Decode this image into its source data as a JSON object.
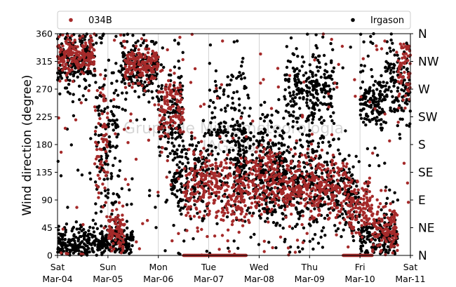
{
  "chart_data": {
    "type": "scatter",
    "title": "",
    "ylabel": "Wind direction (degree)",
    "xlabel": "",
    "ylim": [
      0,
      360
    ],
    "yticks": [
      0,
      45,
      90,
      135,
      180,
      225,
      270,
      315,
      360
    ],
    "xrange": [
      "2023-03-04",
      "2023-03-11"
    ],
    "x_ticks": [
      {
        "day": "Sat",
        "date": "Mar-04"
      },
      {
        "day": "Sun",
        "date": "Mar-05"
      },
      {
        "day": "Mon",
        "date": "Mar-06"
      },
      {
        "day": "Tue",
        "date": "Mar-07"
      },
      {
        "day": "Wed",
        "date": "Mar-08"
      },
      {
        "day": "Thu",
        "date": "Mar-09"
      },
      {
        "day": "Fri",
        "date": "Mar-10"
      },
      {
        "day": "Sat",
        "date": "Mar-11"
      }
    ],
    "compass_labels": [
      "N",
      "NE",
      "E",
      "SE",
      "S",
      "SW",
      "W",
      "NW",
      "N"
    ],
    "vertical_gridlines": true,
    "legend_placement": "top, above plot",
    "watermark_lines": [
      "Grupo de Micrometeorologia",
      "IAG-USP"
    ],
    "series": [
      {
        "name": "034B",
        "color": "#a52a2a",
        "segments": [
          {
            "start": "2023-03-04T00:00",
            "end": "2023-03-04T18:00",
            "center": 325,
            "spread": 28
          },
          {
            "start": "2023-03-04T18:00",
            "end": "2023-03-05T00:00",
            "center": 170,
            "spread": 90
          },
          {
            "start": "2023-03-05T00:00",
            "end": "2023-03-05T08:00",
            "center": 40,
            "spread": 35
          },
          {
            "start": "2023-03-05T08:00",
            "end": "2023-03-06T00:00",
            "center": 310,
            "spread": 30
          },
          {
            "start": "2023-03-06T00:00",
            "end": "2023-03-06T12:00",
            "center": 240,
            "spread": 50
          },
          {
            "start": "2023-03-06T12:00",
            "end": "2023-03-07T06:00",
            "center": 110,
            "spread": 55
          },
          {
            "start": "2023-03-07T06:00",
            "end": "2023-03-07T18:00",
            "center": 100,
            "spread": 60
          },
          {
            "start": "2023-03-07T18:00",
            "end": "2023-03-08T12:00",
            "center": 120,
            "spread": 50
          },
          {
            "start": "2023-03-08T12:00",
            "end": "2023-03-09T18:00",
            "center": 110,
            "spread": 45
          },
          {
            "start": "2023-03-09T18:00",
            "end": "2023-03-10T06:00",
            "center": 80,
            "spread": 40
          },
          {
            "start": "2023-03-10T06:00",
            "end": "2023-03-10T18:00",
            "center": 40,
            "spread": 35
          },
          {
            "start": "2023-03-10T18:00",
            "end": "2023-03-11T00:00",
            "center": 300,
            "spread": 45
          }
        ],
        "zero_runs": [
          {
            "start": "2023-03-06T12:00",
            "end": "2023-03-07T18:00"
          },
          {
            "start": "2023-03-09T16:00",
            "end": "2023-03-10T06:00"
          }
        ]
      },
      {
        "name": "Irgason",
        "color": "#000000",
        "segments": [
          {
            "start": "2023-03-04T00:00",
            "end": "2023-03-04T18:00",
            "center": 320,
            "spread": 40
          },
          {
            "start": "2023-03-04T00:00",
            "end": "2023-03-05T00:00",
            "center": 20,
            "spread": 25
          },
          {
            "start": "2023-03-04T18:00",
            "end": "2023-03-05T06:00",
            "center": 180,
            "spread": 120
          },
          {
            "start": "2023-03-05T00:00",
            "end": "2023-03-05T12:00",
            "center": 20,
            "spread": 20
          },
          {
            "start": "2023-03-05T06:00",
            "end": "2023-03-06T00:00",
            "center": 300,
            "spread": 45
          },
          {
            "start": "2023-03-06T00:00",
            "end": "2023-03-06T12:00",
            "center": 230,
            "spread": 80
          },
          {
            "start": "2023-03-06T06:00",
            "end": "2023-03-07T00:00",
            "center": 130,
            "spread": 70
          },
          {
            "start": "2023-03-07T00:00",
            "end": "2023-03-07T18:00",
            "center": 200,
            "spread": 110
          },
          {
            "start": "2023-03-07T12:00",
            "end": "2023-03-08T12:00",
            "center": 140,
            "spread": 80
          },
          {
            "start": "2023-03-08T00:00",
            "end": "2023-03-09T12:00",
            "center": 120,
            "spread": 70
          },
          {
            "start": "2023-03-08T12:00",
            "end": "2023-03-09T12:00",
            "center": 270,
            "spread": 60
          },
          {
            "start": "2023-03-09T12:00",
            "end": "2023-03-10T00:00",
            "center": 100,
            "spread": 60
          },
          {
            "start": "2023-03-10T00:00",
            "end": "2023-03-10T18:00",
            "center": 30,
            "spread": 30
          },
          {
            "start": "2023-03-10T00:00",
            "end": "2023-03-10T12:00",
            "center": 250,
            "spread": 40
          },
          {
            "start": "2023-03-10T12:00",
            "end": "2023-03-11T00:00",
            "center": 280,
            "spread": 60
          }
        ]
      }
    ]
  }
}
